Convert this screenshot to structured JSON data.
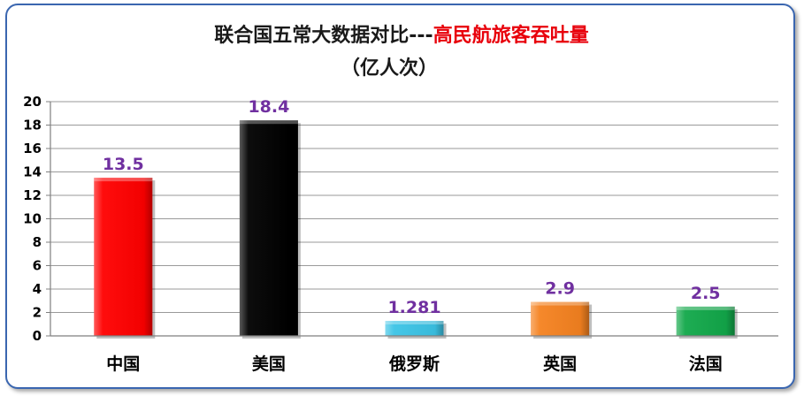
{
  "chart_data": {
    "type": "bar",
    "title_part1": "联合国五常大数据对比---",
    "title_part2": "高民航旅客吞吐量",
    "subtitle": "（亿人次）",
    "categories": [
      "中国",
      "美国",
      "俄罗斯",
      "英国",
      "法国"
    ],
    "values": [
      13.5,
      18.4,
      1.281,
      2.9,
      2.5
    ],
    "data_labels": [
      "13.5",
      "18.4",
      "1.281",
      "2.9",
      "2.5"
    ],
    "colors": [
      "#ff0000",
      "#000000",
      "#3cc4e6",
      "#f58220",
      "#12a84a"
    ],
    "ylim": [
      0,
      20
    ],
    "yticks": [
      0,
      2,
      4,
      6,
      8,
      10,
      12,
      14,
      16,
      18,
      20
    ],
    "grid": true,
    "legend": "none"
  }
}
